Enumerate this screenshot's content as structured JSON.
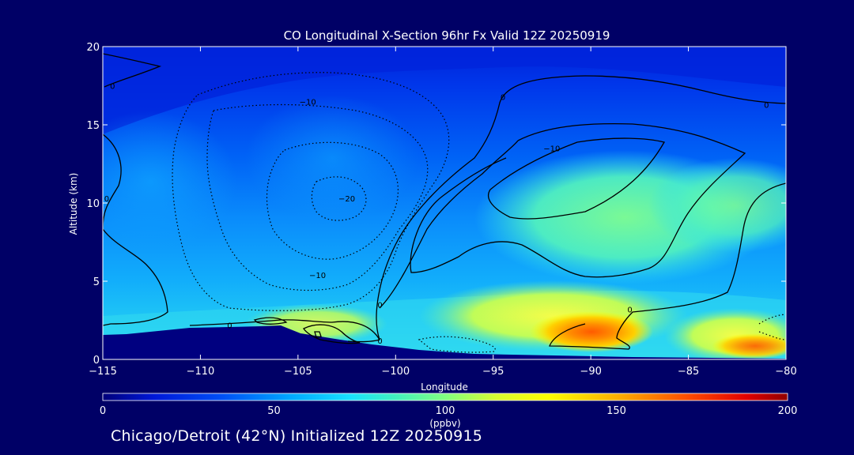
{
  "chart_data": {
    "type": "heatmap",
    "title": "CO Longitudinal X-Section 96hr  Fx Valid 12Z 20250919",
    "xlabel": "Longitude",
    "ylabel": "Altitude (km)",
    "xlim": [
      -115,
      -80
    ],
    "ylim": [
      0,
      20
    ],
    "x_ticks": [
      -115,
      -110,
      -105,
      -100,
      -95,
      -90,
      -85,
      -80
    ],
    "x_tick_labels": [
      "−115",
      "−110",
      "−105",
      "−100",
      "−95",
      "−90",
      "−85",
      "−80"
    ],
    "y_ticks": [
      0,
      5,
      10,
      15,
      20
    ],
    "y_tick_labels": [
      "0",
      "5",
      "10",
      "15",
      "20"
    ],
    "colorbar": {
      "label": "(ppbv)",
      "min": 0,
      "max": 200,
      "ticks": [
        0,
        50,
        100,
        150,
        200
      ],
      "tick_labels": [
        "0",
        "50",
        "100",
        "150",
        "200"
      ],
      "stops": [
        {
          "v": 0,
          "color": "#00007a"
        },
        {
          "v": 15,
          "color": "#0018d8"
        },
        {
          "v": 35,
          "color": "#0050f5"
        },
        {
          "v": 55,
          "color": "#00a8ff"
        },
        {
          "v": 72,
          "color": "#18e0ff"
        },
        {
          "v": 85,
          "color": "#40f0c0"
        },
        {
          "v": 100,
          "color": "#80ff80"
        },
        {
          "v": 115,
          "color": "#d8ff30"
        },
        {
          "v": 130,
          "color": "#ffff00"
        },
        {
          "v": 150,
          "color": "#ffb000"
        },
        {
          "v": 170,
          "color": "#ff5000"
        },
        {
          "v": 188,
          "color": "#e00000"
        },
        {
          "v": 200,
          "color": "#900000"
        }
      ]
    },
    "contour_labels": [
      {
        "text": "0",
        "lon": -114.5,
        "alt": 17.5
      },
      {
        "text": "0",
        "lon": -114.8,
        "alt": 10.3
      },
      {
        "text": "0",
        "lon": -108.5,
        "alt": 2.2
      },
      {
        "text": "0",
        "lon": -100.8,
        "alt": 1.2
      },
      {
        "text": "0",
        "lon": -100.8,
        "alt": 3.5
      },
      {
        "text": "0",
        "lon": -94.5,
        "alt": 16.8
      },
      {
        "text": "0",
        "lon": -88.0,
        "alt": 3.2
      },
      {
        "text": "0",
        "lon": -81.0,
        "alt": 16.3
      },
      {
        "text": "−10",
        "lon": -104.5,
        "alt": 16.5
      },
      {
        "text": "−10",
        "lon": -92.0,
        "alt": 13.5
      },
      {
        "text": "−10",
        "lon": -104.0,
        "alt": 5.4
      },
      {
        "text": "−20",
        "lon": -102.5,
        "alt": 10.3
      }
    ]
  },
  "footer": {
    "caption": "Chicago/Detroit (42°N) Initialized 12Z 20250915"
  }
}
